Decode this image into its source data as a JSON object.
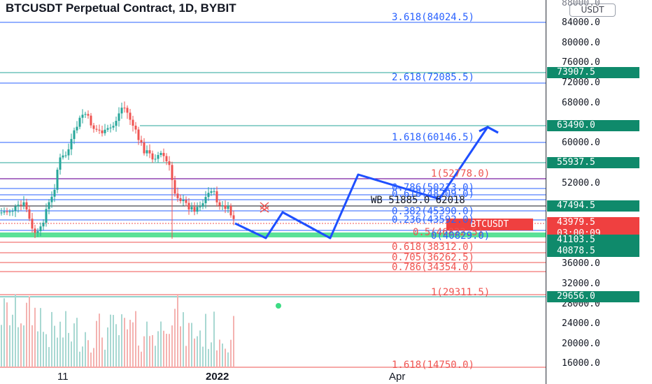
{
  "header": {
    "title": "BTCUSDT Perpetual Contract, 1D, BYBIT",
    "currency": "USDT"
  },
  "price_axis": {
    "top_cut_label": "88000.0",
    "ticks": [
      "84000.0",
      "80000.0",
      "76000.0",
      "72000.0",
      "68000.0",
      "60000.0",
      "52000.0",
      "36000.0",
      "32000.0",
      "28000.0",
      "24000.0",
      "20000.0",
      "16000.0"
    ]
  },
  "price_tags": {
    "t73907": "73907.5",
    "t63490": "63490.0",
    "t55937": "55937.5",
    "t47494": "47494.5",
    "last_price": "43979.5",
    "countdown": "03:00:09",
    "t41103": "41103.5",
    "t40878": "40878.5",
    "t29656": "29656.0"
  },
  "symbol_tag": "BTCUSDT",
  "fib_labels": {
    "f3618": "3.618(84024.5)",
    "f2618": "2.618(72085.5)",
    "f1618": "1.618(60146.5)",
    "f1_top": "1(52778.0)",
    "f0786_top": "0.786(50213.0)",
    "f0618_top": "0.618(48209.0)",
    "wb": "WB 51885.0 62018",
    "f0382_top": "0.382(45390.0)",
    "f0236_top": "0.236(43592.0)",
    "f05_mid": "0.5(46822.5)",
    "f0_bottom": "0(40829.0)",
    "f0618": "0.618(38312.0)",
    "f0705": "0.705(36262.5)",
    "f0786": "0.786(34354.0)",
    "f1": "1(29311.5)",
    "f1618_low": "1.618(14750.0)"
  },
  "time_axis": {
    "d1": "11",
    "d2": "2022",
    "d3": "Apr"
  },
  "colors": {
    "up": "#26a69a",
    "down": "#ef5350",
    "fib_blue": "#2962ff",
    "fib_red": "#ef5350",
    "fib_green": "#089981",
    "projection": "#1e4fff"
  }
}
